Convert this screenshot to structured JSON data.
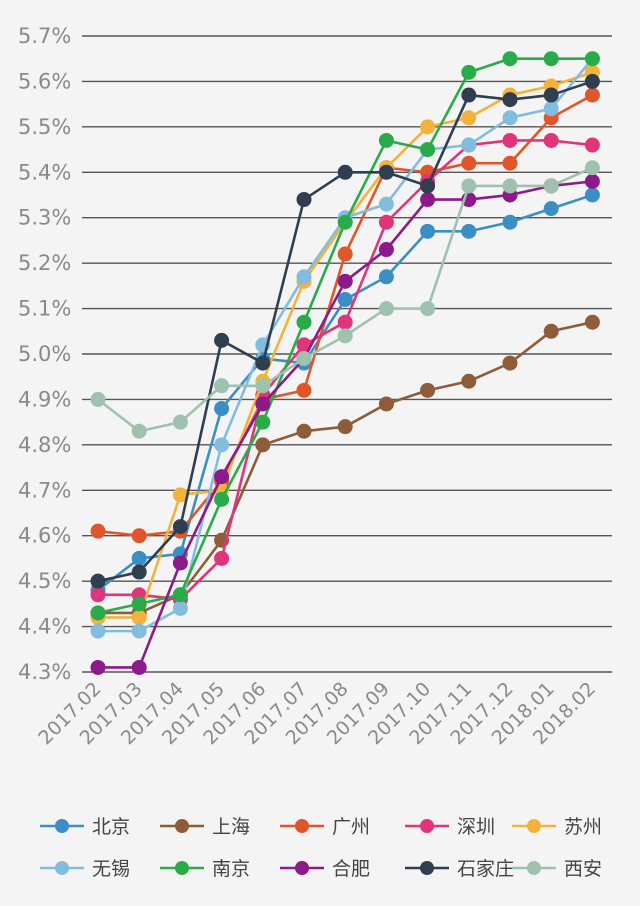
{
  "chart_data": {
    "type": "line",
    "categories": [
      "2017.02",
      "2017.03",
      "2017.04",
      "2017.05",
      "2017.06",
      "2017.07",
      "2017.08",
      "2017.09",
      "2017.10",
      "2017.11",
      "2017.12",
      "2018.01",
      "2018.02"
    ],
    "y_tick_labels": [
      "5.7%",
      "5.6%",
      "5.5%",
      "5.4%",
      "5.3%",
      "5.2%",
      "5.1%",
      "5.0%",
      "4.9%",
      "4.8%",
      "4.7%",
      "4.6%",
      "4.5%",
      "4.4%",
      "4.3%"
    ],
    "ylim": [
      4.3,
      5.7
    ],
    "grid": "horizontal",
    "legend_position": "bottom",
    "series": [
      {
        "name": "北京",
        "color": "#3b8fc4",
        "values": [
          4.48,
          4.55,
          4.56,
          4.88,
          4.99,
          4.98,
          5.12,
          5.17,
          5.27,
          5.27,
          5.29,
          5.32,
          5.35
        ]
      },
      {
        "name": "上海",
        "color": "#8f5c3a",
        "values": [
          4.43,
          4.43,
          4.47,
          4.59,
          4.8,
          4.83,
          4.84,
          4.89,
          4.92,
          4.94,
          4.98,
          5.05,
          5.07
        ]
      },
      {
        "name": "广州",
        "color": "#e0562a",
        "values": [
          4.61,
          4.6,
          4.61,
          4.72,
          4.9,
          4.92,
          5.22,
          5.41,
          5.4,
          5.42,
          5.42,
          5.52,
          5.57
        ]
      },
      {
        "name": "深圳",
        "color": "#e0357a",
        "values": [
          4.47,
          4.47,
          4.46,
          4.55,
          4.91,
          5.02,
          5.07,
          5.29,
          5.38,
          5.46,
          5.47,
          5.47,
          5.46
        ]
      },
      {
        "name": "苏州",
        "color": "#f2b23c",
        "values": [
          4.42,
          4.42,
          4.69,
          4.7,
          4.94,
          5.16,
          5.29,
          5.41,
          5.5,
          5.52,
          5.57,
          5.59,
          5.62
        ]
      },
      {
        "name": "无锡",
        "color": "#82bde0",
        "values": [
          4.39,
          4.39,
          4.44,
          4.8,
          5.02,
          5.17,
          5.3,
          5.33,
          5.45,
          5.46,
          5.52,
          5.54,
          5.65
        ]
      },
      {
        "name": "南京",
        "color": "#2aab4a",
        "values": [
          4.43,
          4.45,
          4.47,
          4.68,
          4.85,
          5.07,
          5.29,
          5.47,
          5.45,
          5.62,
          5.65,
          5.65,
          5.65
        ]
      },
      {
        "name": "合肥",
        "color": "#8c1a8a",
        "values": [
          4.31,
          4.31,
          4.54,
          4.73,
          4.89,
          4.99,
          5.16,
          5.23,
          5.34,
          5.34,
          5.35,
          5.37,
          5.38
        ]
      },
      {
        "name": "石家庄",
        "color": "#2f3f4f",
        "values": [
          4.5,
          4.52,
          4.62,
          5.03,
          4.98,
          5.34,
          5.4,
          5.4,
          5.37,
          5.57,
          5.56,
          5.57,
          5.6
        ]
      },
      {
        "name": "西安",
        "color": "#9fc2ae",
        "values": [
          4.9,
          4.83,
          4.85,
          4.93,
          4.93,
          4.99,
          5.04,
          5.1,
          5.1,
          5.37,
          5.37,
          5.37,
          5.41
        ]
      }
    ]
  }
}
